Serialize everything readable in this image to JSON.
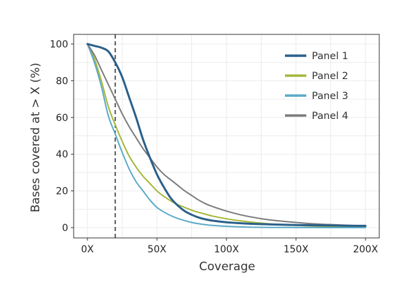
{
  "chart_data": {
    "type": "line",
    "xlabel": "Coverage",
    "ylabel": "Bases covered at > X (%)",
    "xlim": [
      0,
      200
    ],
    "ylim": [
      0,
      100
    ],
    "x_ticks": [
      {
        "value": 0,
        "label": "0X"
      },
      {
        "value": 50,
        "label": "50X"
      },
      {
        "value": 100,
        "label": "100X"
      },
      {
        "value": 150,
        "label": "150X"
      },
      {
        "value": 200,
        "label": "200X"
      }
    ],
    "y_ticks": [
      {
        "value": 0,
        "label": "0"
      },
      {
        "value": 20,
        "label": "20"
      },
      {
        "value": 40,
        "label": "40"
      },
      {
        "value": 60,
        "label": "60"
      },
      {
        "value": 80,
        "label": "80"
      },
      {
        "value": 100,
        "label": "100"
      }
    ],
    "grid": true,
    "legend_position": "top-right",
    "reference_line": {
      "x": 20,
      "style": "dashed",
      "color": "#333333"
    },
    "x": [
      0,
      5,
      10,
      15,
      20,
      25,
      30,
      35,
      40,
      45,
      50,
      55,
      60,
      65,
      70,
      75,
      80,
      85,
      90,
      100,
      110,
      120,
      130,
      140,
      150,
      160,
      170,
      180,
      190,
      200
    ],
    "series": [
      {
        "name": "Panel 1",
        "color": "#2a5f8a",
        "width": 3,
        "values": [
          100,
          99,
          98,
          96,
          90,
          82,
          71,
          60,
          48,
          38,
          29,
          22,
          16,
          12,
          9,
          7,
          5.5,
          4.5,
          3.8,
          2.9,
          2.4,
          2.0,
          1.8,
          1.6,
          1.4,
          1.3,
          1.2,
          1.1,
          1.0,
          1.0
        ]
      },
      {
        "name": "Panel 2",
        "color": "#a3b739",
        "width": 2,
        "values": [
          100,
          92,
          80,
          66,
          56,
          47,
          39,
          33,
          28,
          24,
          20,
          17,
          14.5,
          12.5,
          11,
          9.5,
          8.3,
          7.3,
          6.3,
          4.8,
          3.7,
          2.8,
          2.1,
          1.6,
          1.2,
          0.9,
          0.7,
          0.5,
          0.4,
          0.3
        ]
      },
      {
        "name": "Panel 3",
        "color": "#5aaac6",
        "width": 2,
        "values": [
          100,
          90,
          77,
          61,
          51,
          41,
          32,
          25,
          20,
          15,
          11,
          8.5,
          6.5,
          5,
          3.8,
          2.8,
          2.1,
          1.6,
          1.2,
          0.7,
          0.4,
          0.2,
          0.1,
          0.1,
          0.05,
          0.03,
          0.02,
          0.01,
          0.01,
          0.0
        ]
      },
      {
        "name": "Panel 4",
        "color": "#7b7b7d",
        "width": 2,
        "values": [
          100,
          94,
          86,
          78,
          70,
          62,
          55,
          49,
          43,
          38,
          33,
          29,
          26,
          23,
          20,
          17.5,
          15,
          13,
          11.5,
          9,
          7,
          5.5,
          4.3,
          3.5,
          2.8,
          2.2,
          1.8,
          1.5,
          1.2,
          1.0
        ]
      }
    ]
  }
}
